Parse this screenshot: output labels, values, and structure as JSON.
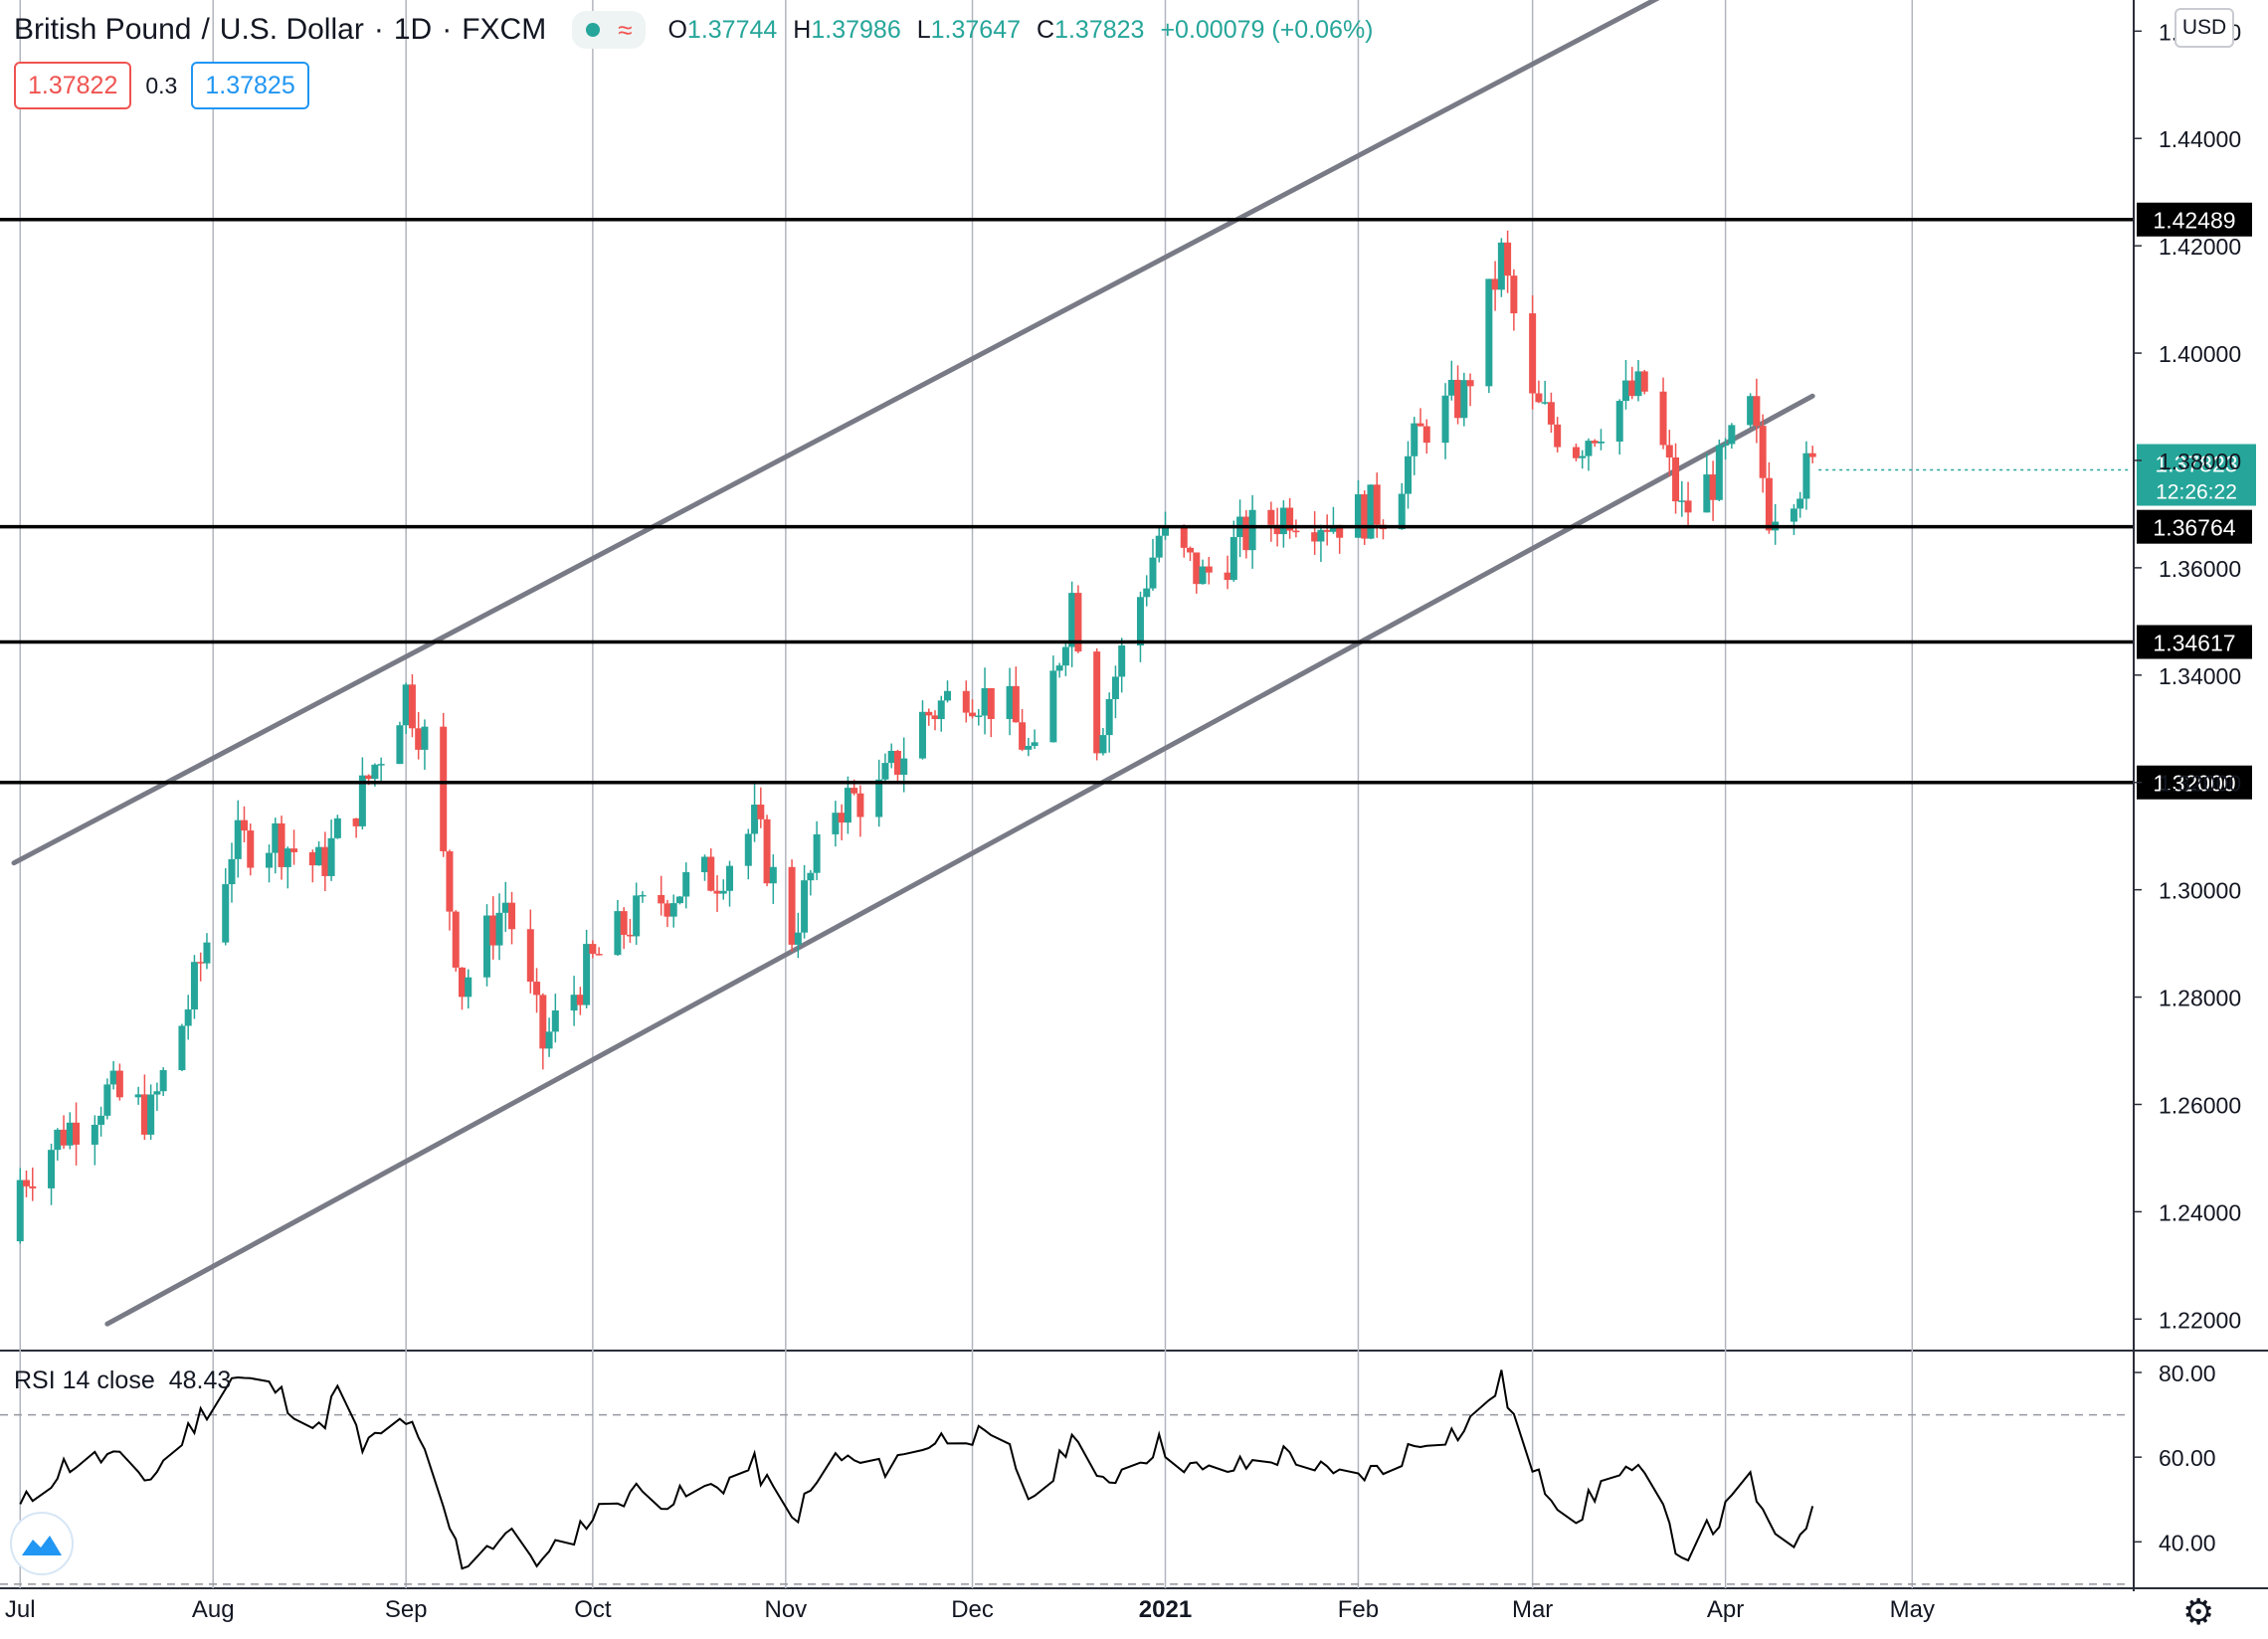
{
  "header": {
    "symbol": "British Pound",
    "quote": "U.S. Dollar",
    "interval": "1D",
    "exchange": "FXCM",
    "ohlc": {
      "o_label": "O",
      "o": "1.37744",
      "h_label": "H",
      "h": "1.37986",
      "l_label": "L",
      "l": "1.37647",
      "c_label": "C",
      "c": "1.37823",
      "change": "+0.00079 (+0.06%)"
    },
    "sell_price": "1.37822",
    "spread": "0.3",
    "buy_price": "1.37825"
  },
  "currency": "USD",
  "rsi": {
    "label": "RSI 14 close",
    "value": "48.43"
  },
  "colors": {
    "up": "#26a69a",
    "down": "#ef5350",
    "channel": "#787b86",
    "level": "#000000",
    "grid": "#e0e3eb",
    "month_line": "#b2b5be"
  },
  "chart_data": [
    {
      "type": "candlestick",
      "x_axis": {
        "tick_labels": [
          "Jul",
          "Aug",
          "Sep",
          "Oct",
          "Nov",
          "Dec",
          "2021",
          "Feb",
          "Mar",
          "Apr",
          "May"
        ],
        "tick_dates": [
          "2020-07-01",
          "2020-08-01",
          "2020-09-01",
          "2020-10-01",
          "2020-11-01",
          "2020-12-01",
          "2021-01-01",
          "2021-02-01",
          "2021-03-01",
          "2021-04-01",
          "2021-05-01"
        ],
        "range": [
          "2020-06-30",
          "2021-05-31"
        ]
      },
      "y_axis": {
        "tick_labels": [
          "1.22000",
          "1.24000",
          "1.26000",
          "1.28000",
          "1.30000",
          "1.32000",
          "1.34000",
          "1.36000",
          "1.38000",
          "1.40000",
          "1.42000",
          "1.44000",
          "1.46000"
        ],
        "range": [
          1.2145,
          1.4658
        ]
      },
      "horizontal_levels": [
        {
          "value": 1.42489,
          "label": "1.42489"
        },
        {
          "value": 1.36764,
          "label": "1.36764"
        },
        {
          "value": 1.34617,
          "label": "1.34617"
        },
        {
          "value": 1.32,
          "label": "1.32000"
        }
      ],
      "channel_lines": [
        {
          "start": [
            "2020-06-30",
            1.305
          ],
          "end": [
            "2021-03-25",
            1.4685
          ]
        },
        {
          "start": [
            "2020-07-15",
            1.2191
          ],
          "end": [
            "2021-04-15",
            1.392
          ]
        }
      ],
      "current_price": {
        "value": 1.37823,
        "label": "1.37823",
        "countdown": "12:26:22"
      },
      "anchors": [
        [
          "2020-07-01",
          1.246
        ],
        [
          "2020-07-08",
          1.255
        ],
        [
          "2020-07-15",
          1.262
        ],
        [
          "2020-07-22",
          1.258
        ],
        [
          "2020-07-29",
          1.282
        ],
        [
          "2020-08-04",
          1.308
        ],
        [
          "2020-08-11",
          1.31
        ],
        [
          "2020-08-18",
          1.304
        ],
        [
          "2020-08-25",
          1.318
        ],
        [
          "2020-09-01",
          1.337
        ],
        [
          "2020-09-04",
          1.328
        ],
        [
          "2020-09-10",
          1.282
        ],
        [
          "2020-09-17",
          1.298
        ],
        [
          "2020-09-23",
          1.271
        ],
        [
          "2020-09-30",
          1.285
        ],
        [
          "2020-10-07",
          1.294
        ],
        [
          "2020-10-14",
          1.3
        ],
        [
          "2020-10-21",
          1.303
        ],
        [
          "2020-10-27",
          1.312
        ],
        [
          "2020-11-02",
          1.292
        ],
        [
          "2020-11-09",
          1.316
        ],
        [
          "2020-11-16",
          1.318
        ],
        [
          "2020-11-23",
          1.332
        ],
        [
          "2020-11-30",
          1.338
        ],
        [
          "2020-12-07",
          1.333
        ],
        [
          "2020-12-11",
          1.323
        ],
        [
          "2020-12-17",
          1.355
        ],
        [
          "2020-12-21",
          1.329
        ],
        [
          "2020-12-31",
          1.366
        ],
        [
          "2021-01-07",
          1.358
        ],
        [
          "2021-01-14",
          1.366
        ],
        [
          "2021-01-21",
          1.371
        ],
        [
          "2021-01-28",
          1.369
        ],
        [
          "2021-02-05",
          1.371
        ],
        [
          "2021-02-12",
          1.387
        ],
        [
          "2021-02-18",
          1.392
        ],
        [
          "2021-02-24",
          1.418
        ],
        [
          "2021-03-01",
          1.39
        ],
        [
          "2021-03-08",
          1.383
        ],
        [
          "2021-03-15",
          1.391
        ],
        [
          "2021-03-19",
          1.393
        ],
        [
          "2021-03-25",
          1.37
        ],
        [
          "2021-03-31",
          1.378
        ],
        [
          "2021-04-05",
          1.389
        ],
        [
          "2021-04-08",
          1.371
        ],
        [
          "2021-04-12",
          1.376
        ],
        [
          "2021-04-15",
          1.378
        ]
      ]
    },
    {
      "type": "line",
      "name": "RSI 14 close",
      "y_axis": {
        "tick_labels": [
          "40.00",
          "60.00",
          "80.00"
        ],
        "range": [
          29.5,
          84.7
        ],
        "bands": [
          30,
          70
        ]
      },
      "points": [
        [
          "2020-07-01",
          48
        ],
        [
          "2020-07-08",
          58
        ],
        [
          "2020-07-15",
          60
        ],
        [
          "2020-07-22",
          55
        ],
        [
          "2020-07-29",
          68
        ],
        [
          "2020-08-04",
          79
        ],
        [
          "2020-08-11",
          76
        ],
        [
          "2020-08-18",
          66
        ],
        [
          "2020-08-21",
          76
        ],
        [
          "2020-08-25",
          62
        ],
        [
          "2020-09-01",
          69
        ],
        [
          "2020-09-04",
          60
        ],
        [
          "2020-09-10",
          35
        ],
        [
          "2020-09-17",
          42
        ],
        [
          "2020-09-23",
          35
        ],
        [
          "2020-09-30",
          45
        ],
        [
          "2020-10-07",
          52
        ],
        [
          "2020-10-14",
          50
        ],
        [
          "2020-10-21",
          53
        ],
        [
          "2020-10-27",
          58
        ],
        [
          "2020-11-02",
          45
        ],
        [
          "2020-11-09",
          60
        ],
        [
          "2020-11-16",
          57
        ],
        [
          "2020-11-23",
          63
        ],
        [
          "2020-11-30",
          66
        ],
        [
          "2020-12-07",
          61
        ],
        [
          "2020-12-11",
          48
        ],
        [
          "2020-12-17",
          66
        ],
        [
          "2020-12-21",
          53
        ],
        [
          "2020-12-31",
          63
        ],
        [
          "2021-01-07",
          56
        ],
        [
          "2021-01-14",
          58
        ],
        [
          "2021-01-21",
          61
        ],
        [
          "2021-01-28",
          55
        ],
        [
          "2021-02-05",
          57
        ],
        [
          "2021-02-12",
          65
        ],
        [
          "2021-02-18",
          66
        ],
        [
          "2021-02-24",
          78
        ],
        [
          "2021-03-01",
          56
        ],
        [
          "2021-03-08",
          46
        ],
        [
          "2021-03-15",
          58
        ],
        [
          "2021-03-19",
          55
        ],
        [
          "2021-03-25",
          37
        ],
        [
          "2021-03-31",
          45
        ],
        [
          "2021-04-05",
          55
        ],
        [
          "2021-04-08",
          42
        ],
        [
          "2021-04-12",
          40
        ],
        [
          "2021-04-15",
          48.43
        ]
      ],
      "label": "48.43"
    }
  ]
}
